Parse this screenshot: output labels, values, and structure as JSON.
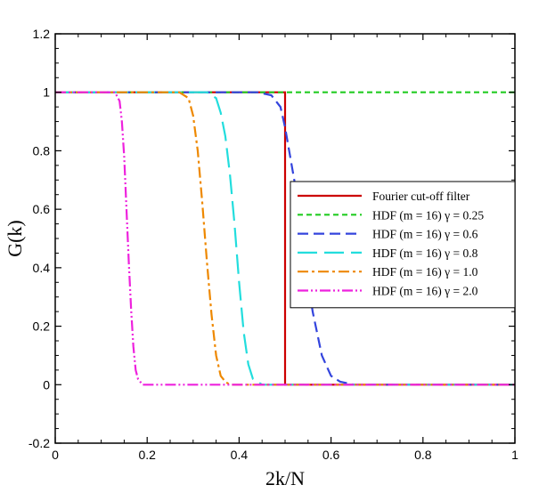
{
  "chart_data": {
    "type": "line",
    "title": "",
    "xlabel": "2k/N",
    "ylabel": "G(k)",
    "xlim": [
      0,
      1
    ],
    "ylim": [
      -0.2,
      1.2
    ],
    "xticks": [
      "0",
      "0.2",
      "0.4",
      "0.6",
      "0.8",
      "1"
    ],
    "yticks": [
      "-0.2",
      "0",
      "0.2",
      "0.4",
      "0.6",
      "0.8",
      "1",
      "1.2"
    ],
    "grid": false,
    "legend_position": "right",
    "series": [
      {
        "name": "Fourier cut-off filter",
        "color": "#cc0000",
        "dash": "solid",
        "x": [
          0,
          0.5,
          0.5,
          1
        ],
        "y": [
          1,
          1,
          0,
          0
        ]
      },
      {
        "name": "HDF (m = 16) γ = 0.25",
        "color": "#22cc22",
        "dash": "short-dash",
        "x": [
          0,
          1
        ],
        "y": [
          1,
          1
        ]
      },
      {
        "name": "HDF (m = 16) γ = 0.6",
        "color": "#3344dd",
        "dash": "dash",
        "x": [
          0,
          0.44,
          0.47,
          0.49,
          0.5,
          0.52,
          0.54,
          0.56,
          0.58,
          0.6,
          0.62,
          0.65,
          1
        ],
        "y": [
          1,
          1,
          0.99,
          0.95,
          0.88,
          0.7,
          0.46,
          0.25,
          0.1,
          0.03,
          0.01,
          0,
          0
        ]
      },
      {
        "name": "HDF (m = 16) γ = 0.8",
        "color": "#22dddd",
        "dash": "long-dash",
        "x": [
          0,
          0.33,
          0.35,
          0.36,
          0.37,
          0.38,
          0.39,
          0.4,
          0.41,
          0.42,
          0.43,
          0.45,
          1
        ],
        "y": [
          1,
          1,
          0.98,
          0.93,
          0.85,
          0.72,
          0.55,
          0.35,
          0.18,
          0.07,
          0.02,
          0,
          0
        ]
      },
      {
        "name": "HDF (m = 16) γ = 1.0",
        "color": "#ee8800",
        "dash": "dash-dot",
        "x": [
          0,
          0.27,
          0.29,
          0.3,
          0.31,
          0.32,
          0.33,
          0.34,
          0.35,
          0.36,
          0.37,
          0.38,
          1
        ],
        "y": [
          1,
          1,
          0.98,
          0.92,
          0.8,
          0.62,
          0.42,
          0.24,
          0.1,
          0.03,
          0.01,
          0,
          0
        ]
      },
      {
        "name": "HDF (m = 16) γ = 2.0",
        "color": "#ee22dd",
        "dash": "dash-dot-dot",
        "x": [
          0,
          0.13,
          0.14,
          0.145,
          0.15,
          0.155,
          0.16,
          0.165,
          0.17,
          0.175,
          0.18,
          0.19,
          1
        ],
        "y": [
          1,
          1,
          0.97,
          0.9,
          0.78,
          0.6,
          0.42,
          0.26,
          0.13,
          0.05,
          0.02,
          0,
          0
        ]
      }
    ]
  }
}
